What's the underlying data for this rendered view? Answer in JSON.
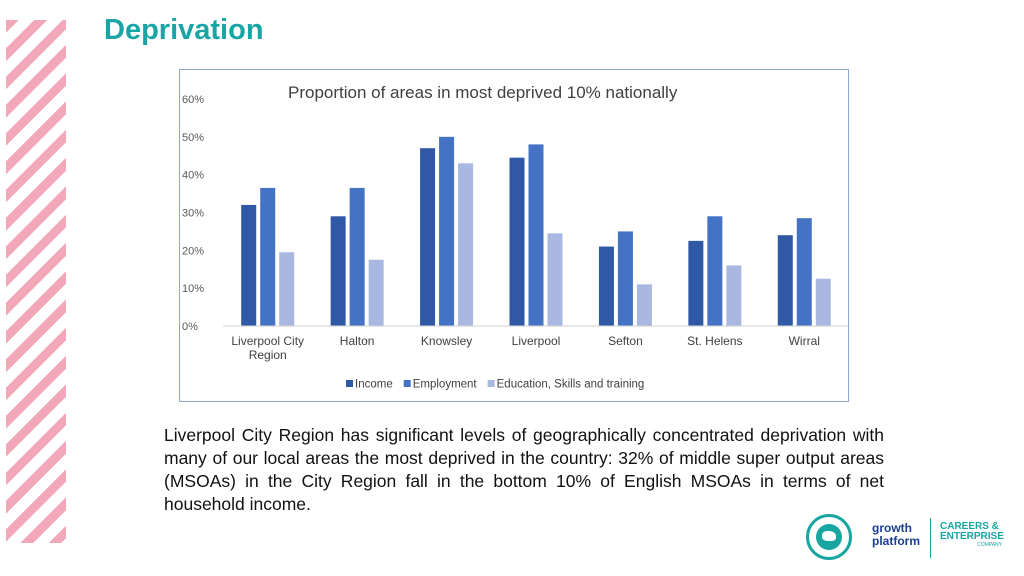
{
  "page": {
    "title": "Deprivation"
  },
  "body_text": "Liverpool City Region has significant levels of geographically concentrated deprivation with many of our local areas the most deprived in the country: 32% of middle super output areas (MSOAs) in the City Region fall in the bottom 10% of English MSOAs in terms of net household income.",
  "colors": {
    "title": "#1aa5a5",
    "stripe": "#f2a8b8"
  },
  "logos": {
    "growth_platform": [
      "growth",
      "platform"
    ],
    "careers_enterprise": [
      "CAREERS &",
      "ENTERPRISE",
      "COMPANY"
    ]
  },
  "chart_data": {
    "type": "bar",
    "title": "Proportion of areas in most deprived 10% nationally",
    "xlabel": "",
    "ylabel": "",
    "ylim": [
      0,
      60
    ],
    "yticks": [
      "0%",
      "10%",
      "20%",
      "30%",
      "40%",
      "50%",
      "60%"
    ],
    "grid": false,
    "legend": "bottom",
    "categories": [
      [
        "Liverpool City",
        "Region"
      ],
      [
        "Halton"
      ],
      [
        "Knowsley"
      ],
      [
        "Liverpool"
      ],
      [
        "Sefton"
      ],
      [
        "St. Helens"
      ],
      [
        "Wirral"
      ]
    ],
    "series": [
      {
        "name": "Income",
        "color": "#2f58a5",
        "values": [
          32,
          29,
          47,
          44.5,
          21,
          22.5,
          24
        ]
      },
      {
        "name": "Employment",
        "color": "#4472c4",
        "values": [
          36.5,
          36.5,
          50,
          48,
          25,
          29,
          28.5
        ]
      },
      {
        "name": "Education, Skills and training",
        "color": "#a9b8e0",
        "values": [
          19.5,
          17.5,
          43,
          24.5,
          11,
          16,
          12.5
        ]
      }
    ]
  }
}
